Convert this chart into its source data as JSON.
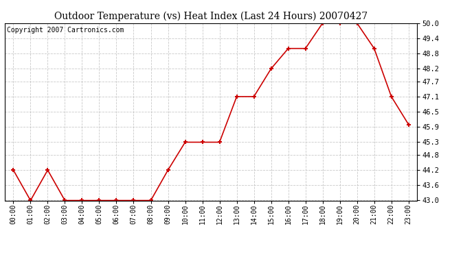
{
  "title": "Outdoor Temperature (vs) Heat Index (Last 24 Hours) 20070427",
  "copyright": "Copyright 2007 Cartronics.com",
  "x_labels": [
    "00:00",
    "01:00",
    "02:00",
    "03:00",
    "04:00",
    "05:00",
    "06:00",
    "07:00",
    "08:00",
    "09:00",
    "10:00",
    "11:00",
    "12:00",
    "13:00",
    "14:00",
    "15:00",
    "16:00",
    "17:00",
    "18:00",
    "19:00",
    "20:00",
    "21:00",
    "22:00",
    "23:00"
  ],
  "y_values": [
    44.2,
    43.0,
    44.2,
    43.0,
    43.0,
    43.0,
    43.0,
    43.0,
    43.0,
    44.2,
    45.3,
    45.3,
    45.3,
    47.1,
    47.1,
    48.2,
    49.0,
    49.0,
    50.0,
    50.0,
    50.0,
    49.0,
    47.1,
    46.0
  ],
  "y_min": 43.0,
  "y_max": 50.0,
  "y_ticks": [
    43.0,
    43.6,
    44.2,
    44.8,
    45.3,
    45.9,
    46.5,
    47.1,
    47.7,
    48.2,
    48.8,
    49.4,
    50.0
  ],
  "line_color": "#cc0000",
  "marker_color": "#cc0000",
  "bg_color": "#ffffff",
  "plot_bg_color": "#ffffff",
  "grid_color": "#bbbbbb",
  "title_fontsize": 10,
  "copyright_fontsize": 7
}
